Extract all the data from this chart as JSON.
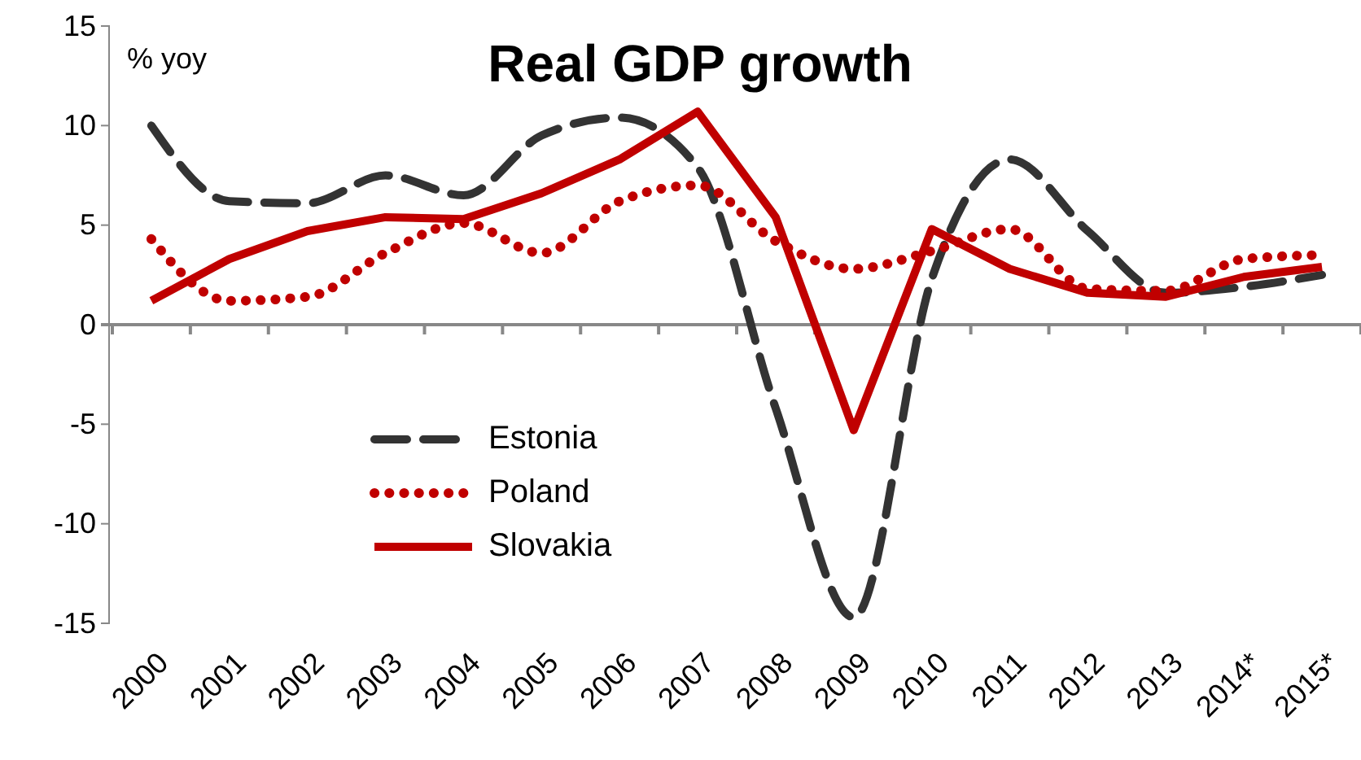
{
  "chart_data": {
    "type": "line",
    "title": "Real GDP growth",
    "ylabel": "% yoy",
    "categories": [
      "2000",
      "2001",
      "2002",
      "2003",
      "2004",
      "2005",
      "2006",
      "2007",
      "2008",
      "2009",
      "2010",
      "2011",
      "2012",
      "2013",
      "2014*",
      "2015*"
    ],
    "series": [
      {
        "name": "Estonia",
        "color": "#333333",
        "line_style": "dashed",
        "values": [
          10,
          6.2,
          6.1,
          7.5,
          6.5,
          9.5,
          10.4,
          7.9,
          -4.2,
          -14.7,
          2.3,
          8.3,
          4.7,
          1.6,
          1.9,
          2.5
        ]
      },
      {
        "name": "Poland",
        "color": "#c00000",
        "line_style": "dotted",
        "values": [
          4.3,
          1.2,
          1.4,
          3.6,
          5.1,
          3.6,
          6.2,
          7.0,
          4.2,
          2.8,
          3.7,
          4.8,
          1.8,
          1.7,
          3.3,
          3.5
        ]
      },
      {
        "name": "Slovakia",
        "color": "#c00000",
        "line_style": "solid",
        "values": [
          1.2,
          3.3,
          4.7,
          5.4,
          5.3,
          6.6,
          8.3,
          10.7,
          5.4,
          -5.3,
          4.8,
          2.8,
          1.6,
          1.4,
          2.4,
          2.9
        ]
      }
    ],
    "ylim": [
      -15,
      15
    ],
    "yticks": [
      -15,
      -10,
      -5,
      0,
      5,
      10,
      15
    ],
    "legend": "bottom left",
    "marker": "none"
  }
}
